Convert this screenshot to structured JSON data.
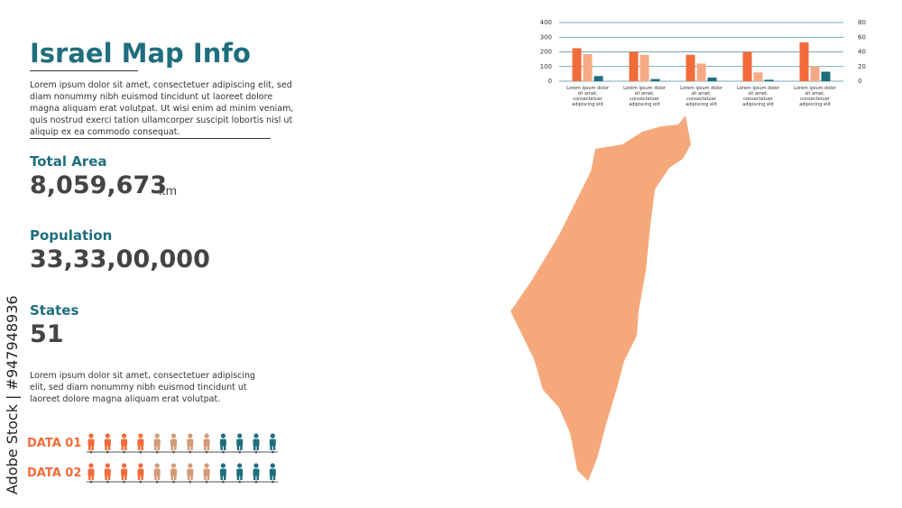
{
  "header": {
    "title": "Israel Map Info",
    "intro": "Lorem ipsum dolor sit amet, consectetuer adipiscing elit, sed diam nonummy nibh euismod tincidunt ut laoreet dolore magna aliquam erat volutpat. Ut wisi enim ad minim veniam, quis nostrud exerci tation ullamcorper suscipit lobortis nisl ut aliquip ex ea commodo consequat."
  },
  "stats": [
    {
      "label": "Total Area",
      "value": "8,059,673",
      "unit": "km"
    },
    {
      "label": "Population",
      "value": "33,33,00,000"
    },
    {
      "label": "States",
      "value": "51"
    }
  ],
  "note": "Lorem ipsum dolor sit amet, consectetuer adipiscing elit, sed diam nonummy nibh euismod tincidunt ut laoreet dolore magna aliquam erat volutpat.",
  "pictogram": {
    "colors": [
      "#f26b3a",
      "#d39a75",
      "#1f6e7e"
    ],
    "rows": [
      {
        "label": "DATA 01",
        "counts": [
          4,
          4,
          4
        ]
      },
      {
        "label": "DATA 02",
        "counts": [
          4,
          4,
          4
        ]
      }
    ]
  },
  "watermark": "Adobe Stock | #947948936",
  "chart_data": {
    "type": "bar",
    "categories": [
      "Lorem ipsum dolor sit amet, consectetuer adipiscing elit",
      "Lorem ipsum dolor sit amet, consectetuer adipiscing elit",
      "Lorem ipsum dolor sit amet, consectetuer adipiscing elit",
      "Lorem ipsum dolor sit amet, consectetuer adipiscing elit",
      "Lorem ipsum dolor sit amet, consectetuer adipiscing elit"
    ],
    "series": [
      {
        "color": "#f26b3a",
        "values": [
          225,
          200,
          180,
          200,
          265
        ]
      },
      {
        "color": "#f6aa84",
        "values": [
          185,
          180,
          120,
          60,
          100
        ]
      },
      {
        "color": "#1f6e7e",
        "axis": "y2",
        "values": [
          7,
          3,
          5,
          2,
          13
        ]
      }
    ],
    "ylim": [
      0,
      400
    ],
    "yticks": [
      0,
      100,
      200,
      300,
      400
    ],
    "y2lim": [
      0,
      80
    ],
    "y2ticks": [
      0,
      20,
      40,
      60,
      80
    ],
    "grid": true
  }
}
